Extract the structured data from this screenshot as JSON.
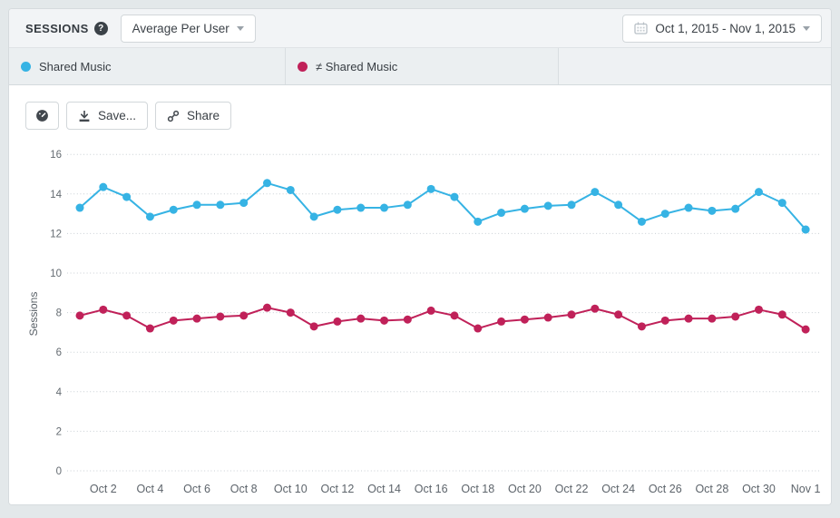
{
  "header": {
    "title": "SESSIONS",
    "help_glyph": "?",
    "metric_dropdown": {
      "value": "Average Per User"
    },
    "date_range": {
      "value": "Oct 1, 2015 - Nov 1, 2015"
    }
  },
  "legend": {
    "series": [
      {
        "label": "Shared Music",
        "color": "#36b3e4"
      },
      {
        "label": "≠ Shared Music",
        "color": "#c02159"
      }
    ]
  },
  "toolbar": {
    "dashboard_icon": "gauge-icon",
    "save_label": "Save...",
    "share_label": "Share"
  },
  "chart_data": {
    "type": "line",
    "title": "",
    "xlabel": "",
    "ylabel": "Sessions",
    "ylim": [
      0,
      16
    ],
    "ytick_step": 2,
    "grid": "horizontal-dotted",
    "legend_position": "top-tabs",
    "x": [
      "Oct 1",
      "Oct 2",
      "Oct 3",
      "Oct 4",
      "Oct 5",
      "Oct 6",
      "Oct 7",
      "Oct 8",
      "Oct 9",
      "Oct 10",
      "Oct 11",
      "Oct 12",
      "Oct 13",
      "Oct 14",
      "Oct 15",
      "Oct 16",
      "Oct 17",
      "Oct 18",
      "Oct 19",
      "Oct 20",
      "Oct 21",
      "Oct 22",
      "Oct 23",
      "Oct 24",
      "Oct 25",
      "Oct 26",
      "Oct 27",
      "Oct 28",
      "Oct 29",
      "Oct 30",
      "Oct 31",
      "Nov 1"
    ],
    "x_tick_labels": [
      "Oct 2",
      "Oct 4",
      "Oct 6",
      "Oct 8",
      "Oct 10",
      "Oct 12",
      "Oct 14",
      "Oct 16",
      "Oct 18",
      "Oct 20",
      "Oct 22",
      "Oct 24",
      "Oct 26",
      "Oct 28",
      "Oct 30",
      "Nov 1"
    ],
    "series": [
      {
        "name": "Shared Music",
        "color": "#36b3e4",
        "values": [
          13.3,
          14.35,
          13.85,
          12.85,
          13.2,
          13.45,
          13.45,
          13.55,
          14.55,
          14.2,
          12.85,
          13.2,
          13.3,
          13.3,
          13.45,
          14.25,
          13.85,
          12.6,
          13.05,
          13.25,
          13.4,
          13.45,
          14.1,
          13.45,
          12.6,
          13.0,
          13.3,
          13.15,
          13.25,
          14.1,
          13.55,
          12.2
        ]
      },
      {
        "name": "≠ Shared Music",
        "color": "#c02159",
        "values": [
          7.85,
          8.15,
          7.85,
          7.2,
          7.6,
          7.7,
          7.8,
          7.85,
          8.25,
          8.0,
          7.3,
          7.55,
          7.7,
          7.6,
          7.65,
          8.1,
          7.85,
          7.2,
          7.55,
          7.65,
          7.75,
          7.9,
          8.2,
          7.9,
          7.3,
          7.6,
          7.7,
          7.7,
          7.8,
          8.15,
          7.9,
          7.15
        ]
      }
    ]
  }
}
